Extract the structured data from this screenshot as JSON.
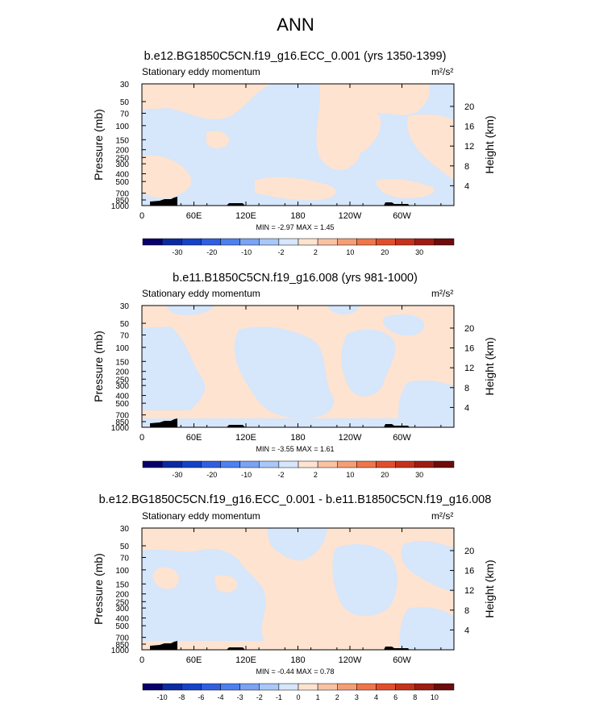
{
  "page": {
    "title": "ANN"
  },
  "chart_data": [
    {
      "type": "heatmap",
      "title": "b.e12.BG1850C5CN.f19_g16.ECC_0.001 (yrs 1350-1399)",
      "subtitle": "Stationary eddy momentum",
      "units": "m²/s²",
      "ylabel": "Pressure (mb)",
      "ylabel_right": "Height (km)",
      "x_ticks": [
        "0",
        "60E",
        "120E",
        "180",
        "120W",
        "60W"
      ],
      "x_range": [
        0,
        360
      ],
      "y_ticks": [
        "30",
        "50",
        "70",
        "100",
        "150",
        "200",
        "250",
        "300",
        "400",
        "500",
        "700",
        "850",
        "1000"
      ],
      "y_range": [
        30,
        1000
      ],
      "height_ticks": [
        "20",
        "16",
        "12",
        "8",
        "4"
      ],
      "stats": {
        "min_label": "MIN =",
        "min": "-2.97",
        "max_label": "MAX =",
        "max": "1.45"
      },
      "colorbar": {
        "labels": [
          "-30",
          "-20",
          "-10",
          "-2",
          "2",
          "10",
          "20",
          "30"
        ],
        "colors": [
          "#08006b",
          "#0c2ba0",
          "#1642c8",
          "#2f5fe0",
          "#4e80ee",
          "#7aa3f4",
          "#a9c8f8",
          "#d6e6fb",
          "#fde3d0",
          "#f9c3a3",
          "#f59e74",
          "#f0754a",
          "#e24e2c",
          "#c4321c",
          "#9e1c12",
          "#6e0b0b"
        ]
      },
      "field": {
        "dominant": "weak positive and negative eddy momentum (-2 to 2)",
        "min": -2.97,
        "max": 1.45
      }
    },
    {
      "type": "heatmap",
      "title": "b.e11.B1850C5CN.f19_g16.008 (yrs 981-1000)",
      "subtitle": "Stationary eddy momentum",
      "units": "m²/s²",
      "ylabel": "Pressure (mb)",
      "ylabel_right": "Height (km)",
      "x_ticks": [
        "0",
        "60E",
        "120E",
        "180",
        "120W",
        "60W"
      ],
      "x_range": [
        0,
        360
      ],
      "y_ticks": [
        "30",
        "50",
        "70",
        "100",
        "150",
        "200",
        "250",
        "300",
        "400",
        "500",
        "700",
        "850",
        "1000"
      ],
      "y_range": [
        30,
        1000
      ],
      "height_ticks": [
        "20",
        "16",
        "12",
        "8",
        "4"
      ],
      "stats": {
        "min_label": "MIN =",
        "min": "-3.55",
        "max_label": "MAX =",
        "max": "1.61"
      },
      "colorbar": {
        "labels": [
          "-30",
          "-20",
          "-10",
          "-2",
          "2",
          "10",
          "20",
          "30"
        ],
        "colors": [
          "#08006b",
          "#0c2ba0",
          "#1642c8",
          "#2f5fe0",
          "#4e80ee",
          "#7aa3f4",
          "#a9c8f8",
          "#d6e6fb",
          "#fde3d0",
          "#f9c3a3",
          "#f59e74",
          "#f0754a",
          "#e24e2c",
          "#c4321c",
          "#9e1c12",
          "#6e0b0b"
        ]
      },
      "field": {
        "dominant": "weak positive and negative eddy momentum (-2 to 2)",
        "min": -3.55,
        "max": 1.61
      }
    },
    {
      "type": "heatmap",
      "title": "b.e12.BG1850C5CN.f19_g16.ECC_0.001 - b.e11.B1850C5CN.f19_g16.008",
      "subtitle": "Stationary eddy momentum",
      "units": "m²/s²",
      "ylabel": "Pressure (mb)",
      "ylabel_right": "Height (km)",
      "x_ticks": [
        "0",
        "60E",
        "120E",
        "180",
        "120W",
        "60W"
      ],
      "x_range": [
        0,
        360
      ],
      "y_ticks": [
        "30",
        "50",
        "70",
        "100",
        "150",
        "200",
        "250",
        "300",
        "400",
        "500",
        "700",
        "850",
        "1000"
      ],
      "y_range": [
        30,
        1000
      ],
      "height_ticks": [
        "20",
        "16",
        "12",
        "8",
        "4"
      ],
      "stats": {
        "min_label": "MIN =",
        "min": "-0.44",
        "max_label": "MAX =",
        "max": "0.78"
      },
      "colorbar": {
        "labels": [
          "-10",
          "-8",
          "-6",
          "-4",
          "-3",
          "-2",
          "-1",
          "0",
          "1",
          "2",
          "3",
          "4",
          "6",
          "8",
          "10"
        ],
        "colors": [
          "#08006b",
          "#0c2ba0",
          "#1642c8",
          "#2f5fe0",
          "#4e80ee",
          "#7aa3f4",
          "#a9c8f8",
          "#d6e6fb",
          "#fde3d0",
          "#f9c3a3",
          "#f59e74",
          "#f0754a",
          "#e24e2c",
          "#c4321c",
          "#9e1c12",
          "#6e0b0b"
        ]
      },
      "field": {
        "dominant": "small differences (-1 to 1)",
        "min": -0.44,
        "max": 0.78
      }
    }
  ],
  "colors": {
    "negative_fill": "#d6e6fb",
    "positive_fill": "#fde3d0",
    "terrain": "#000000"
  }
}
